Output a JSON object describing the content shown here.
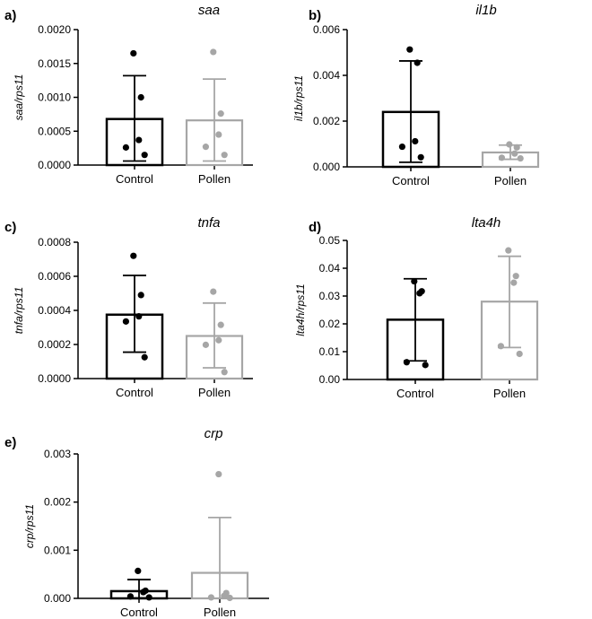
{
  "colors": {
    "control": "#000000",
    "pollen": "#a6a6a6"
  },
  "chart_data": [
    {
      "panel": "a)",
      "type": "bar",
      "title": "saa",
      "ylabel": "saa/rps11",
      "categories": [
        "Control",
        "Pollen"
      ],
      "ylim": [
        0,
        0.002
      ],
      "yticks": [
        "0.0000",
        "0.0005",
        "0.0010",
        "0.0015",
        "0.0020"
      ],
      "tickvalues": [
        0,
        0.0005,
        0.001,
        0.0015,
        0.002
      ],
      "series": [
        {
          "name": "Control",
          "mean": 0.00068,
          "sd_low": 6e-05,
          "sd_high": 0.00132,
          "points": [
            0.00165,
            0.001,
            0.00037,
            0.00026,
            0.00015
          ]
        },
        {
          "name": "Pollen",
          "mean": 0.00066,
          "sd_low": 6e-05,
          "sd_high": 0.00127,
          "points": [
            0.00167,
            0.00076,
            0.00045,
            0.00027,
            0.00015
          ]
        }
      ]
    },
    {
      "panel": "b)",
      "type": "bar",
      "title": "il1b",
      "ylabel": "il1b/rps11",
      "categories": [
        "Control",
        "Pollen"
      ],
      "ylim": [
        0,
        0.006
      ],
      "yticks": [
        "0.000",
        "0.002",
        "0.004",
        "0.006"
      ],
      "tickvalues": [
        0,
        0.002,
        0.004,
        0.006
      ],
      "series": [
        {
          "name": "Control",
          "mean": 0.0024,
          "sd_low": 0.0002,
          "sd_high": 0.00463,
          "points": [
            0.00513,
            0.00455,
            0.00112,
            0.00088,
            0.00042
          ]
        },
        {
          "name": "Pollen",
          "mean": 0.00063,
          "sd_low": 0.00033,
          "sd_high": 0.00095,
          "points": [
            0.00098,
            0.00085,
            0.00058,
            0.0004,
            0.00037
          ]
        }
      ]
    },
    {
      "panel": "c)",
      "type": "bar",
      "title": "tnfa",
      "ylabel": "tnfa/rps11",
      "categories": [
        "Control",
        "Pollen"
      ],
      "ylim": [
        0,
        0.0008
      ],
      "yticks": [
        "0.0000",
        "0.0002",
        "0.0004",
        "0.0006",
        "0.0008"
      ],
      "tickvalues": [
        0,
        0.0002,
        0.0004,
        0.0006,
        0.0008
      ],
      "series": [
        {
          "name": "Control",
          "mean": 0.000375,
          "sd_low": 0.000155,
          "sd_high": 0.000605,
          "points": [
            0.00072,
            0.00049,
            0.000365,
            0.000335,
            0.000125
          ]
        },
        {
          "name": "Pollen",
          "mean": 0.00025,
          "sd_low": 6.3e-05,
          "sd_high": 0.000443,
          "points": [
            0.00051,
            0.000315,
            0.000225,
            0.000198,
            3.8e-05
          ]
        }
      ]
    },
    {
      "panel": "d)",
      "type": "bar",
      "title": "lta4h",
      "ylabel": "lta4h/rps11",
      "categories": [
        "Control",
        "Pollen"
      ],
      "ylim": [
        0,
        0.05
      ],
      "yticks": [
        "0.00",
        "0.01",
        "0.02",
        "0.03",
        "0.04",
        "0.05"
      ],
      "tickvalues": [
        0,
        0.01,
        0.02,
        0.03,
        0.04,
        0.05
      ],
      "series": [
        {
          "name": "Control",
          "mean": 0.0215,
          "sd_low": 0.0067,
          "sd_high": 0.0362,
          "points": [
            0.0353,
            0.0317,
            0.031,
            0.0062,
            0.0052
          ]
        },
        {
          "name": "Pollen",
          "mean": 0.028,
          "sd_low": 0.0115,
          "sd_high": 0.0443,
          "points": [
            0.0464,
            0.0372,
            0.0348,
            0.012,
            0.0092
          ]
        }
      ]
    },
    {
      "panel": "e)",
      "type": "bar",
      "title": "crp",
      "ylabel": "crp/rps11",
      "categories": [
        "Control",
        "Pollen"
      ],
      "ylim": [
        0,
        0.003
      ],
      "yticks": [
        "0.000",
        "0.001",
        "0.002",
        "0.003"
      ],
      "tickvalues": [
        0,
        0.001,
        0.002,
        0.003
      ],
      "series": [
        {
          "name": "Control",
          "mean": 0.00015,
          "sd_low": 1e-05,
          "sd_high": 0.00039,
          "points": [
            0.00057,
            0.00016,
            0.00013,
            4e-05,
            2e-05
          ]
        },
        {
          "name": "Pollen",
          "mean": 0.00053,
          "sd_low": 0.0,
          "sd_high": 0.00168,
          "points": [
            0.00258,
            0.00011,
            5e-05,
            2e-05,
            1e-05
          ]
        }
      ]
    }
  ]
}
